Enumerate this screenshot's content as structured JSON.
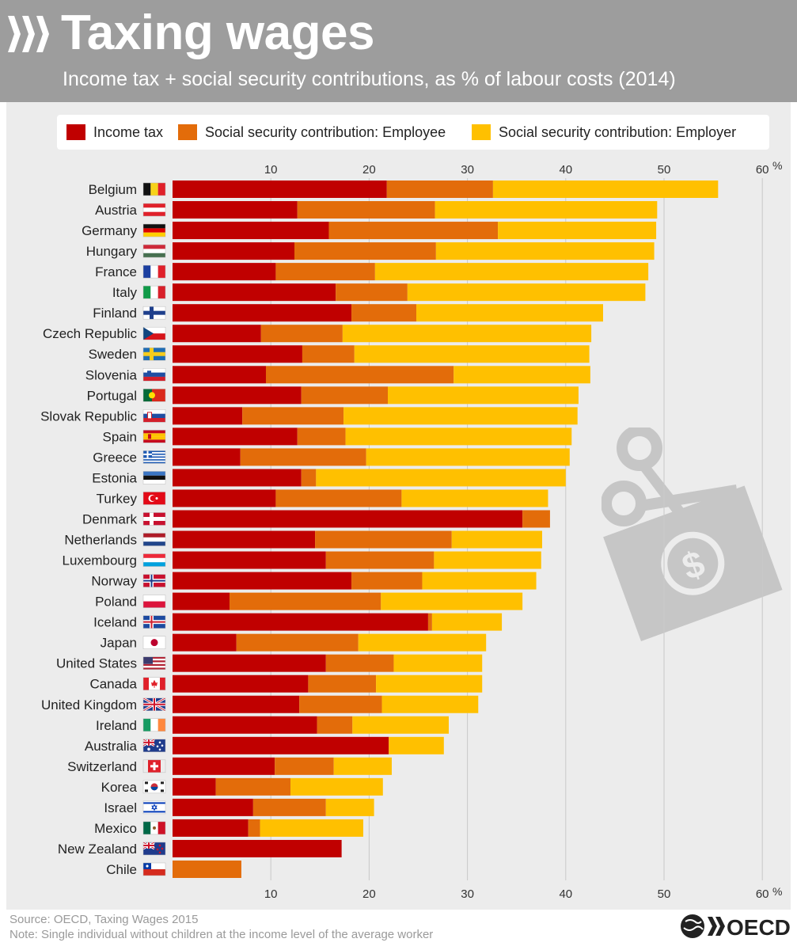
{
  "header": {
    "title": "Taxing wages",
    "subtitle": "Income tax + social security contributions, as % of labour costs (2014)"
  },
  "legend": {
    "income_tax": "Income tax",
    "employee": "Social security contribution: Employee",
    "employer": "Social security contribution: Employer"
  },
  "colors": {
    "income_tax": "#c00000",
    "employee": "#e36c0a",
    "employer": "#ffc000",
    "header_bg": "#9d9d9d",
    "panel_bg": "#ececec"
  },
  "footer": {
    "source": "Source: OECD, Taxing Wages 2015",
    "note": "Note: Single individual without children at the income level of the average worker",
    "logo_text": "OECD"
  },
  "chart_data": {
    "type": "bar",
    "orientation": "horizontal",
    "stacked": true,
    "title": "Taxing wages",
    "subtitle": "Income tax + social security contributions, as % of labour costs (2014)",
    "xlabel": "",
    "xlim": [
      0,
      60
    ],
    "ticks": [
      10,
      20,
      30,
      40,
      50,
      60
    ],
    "tick_labels": [
      "10",
      "20",
      "30",
      "40",
      "50",
      "60"
    ],
    "unit": "%",
    "grid": true,
    "legend_position": "top",
    "categories": [
      "Belgium",
      "Austria",
      "Germany",
      "Hungary",
      "France",
      "Italy",
      "Finland",
      "Czech Republic",
      "Sweden",
      "Slovenia",
      "Portugal",
      "Slovak Republic",
      "Spain",
      "Greece",
      "Estonia",
      "Turkey",
      "Denmark",
      "Netherlands",
      "Luxembourg",
      "Norway",
      "Poland",
      "Iceland",
      "Japan",
      "United States",
      "Canada",
      "United Kingdom",
      "Ireland",
      "Australia",
      "Switzerland",
      "Korea",
      "Israel",
      "Mexico",
      "New Zealand",
      "Chile"
    ],
    "flags": [
      "belgium",
      "austria",
      "germany",
      "hungary",
      "france",
      "italy",
      "finland",
      "czech-republic",
      "sweden",
      "slovenia",
      "portugal",
      "slovak-republic",
      "spain",
      "greece",
      "estonia",
      "turkey",
      "denmark",
      "netherlands",
      "luxembourg",
      "norway",
      "poland",
      "iceland",
      "japan",
      "united-states",
      "canada",
      "united-kingdom",
      "ireland",
      "australia",
      "switzerland",
      "korea",
      "israel",
      "mexico",
      "new-zealand",
      "chile"
    ],
    "series": [
      {
        "name": "Income tax",
        "values": [
          21.8,
          12.7,
          15.9,
          12.4,
          10.5,
          16.6,
          18.2,
          9.0,
          13.2,
          9.5,
          13.1,
          7.1,
          12.7,
          6.9,
          13.1,
          10.5,
          35.6,
          14.5,
          15.6,
          18.2,
          5.8,
          26.0,
          6.5,
          15.6,
          13.8,
          12.9,
          14.7,
          22.0,
          10.4,
          4.4,
          8.2,
          7.7,
          17.2,
          0.0
        ]
      },
      {
        "name": "Social security contribution: Employee",
        "values": [
          10.8,
          14.0,
          17.2,
          14.4,
          10.1,
          7.3,
          6.6,
          8.3,
          5.3,
          19.1,
          8.8,
          10.3,
          4.9,
          12.8,
          1.5,
          12.8,
          2.8,
          13.9,
          11.0,
          7.2,
          15.4,
          0.4,
          12.4,
          6.9,
          6.9,
          8.4,
          3.6,
          0.0,
          6.0,
          7.6,
          7.4,
          1.2,
          0.0,
          7.0
        ]
      },
      {
        "name": "Social security contribution: Employer",
        "values": [
          22.9,
          22.6,
          16.1,
          22.2,
          27.8,
          24.2,
          19.0,
          25.3,
          23.9,
          13.9,
          19.4,
          23.8,
          23.0,
          20.7,
          25.4,
          14.9,
          0.0,
          9.2,
          10.9,
          11.6,
          14.4,
          7.1,
          13.0,
          9.0,
          10.8,
          9.8,
          9.8,
          5.6,
          5.9,
          9.4,
          4.9,
          10.5,
          0.0,
          0.0
        ]
      }
    ]
  }
}
